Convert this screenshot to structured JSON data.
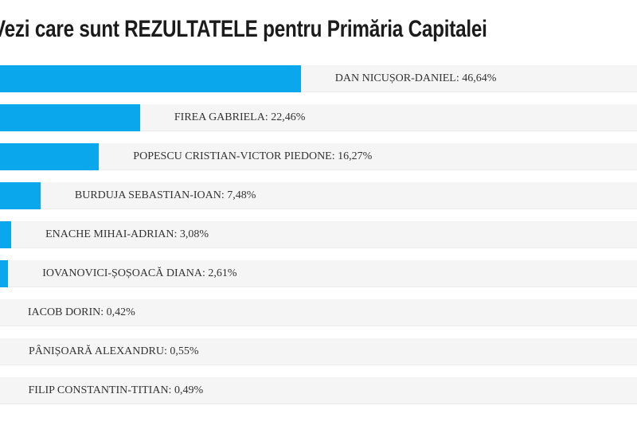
{
  "header": {
    "title": "Vezi care sunt REZULTATELE pentru Primăria Capitalei"
  },
  "colors": {
    "bar": "#0aa7ec",
    "row_background": "#f5f5f5",
    "title_text": "#1b1b1b",
    "label_text": "#333333"
  },
  "chart_data": {
    "type": "bar",
    "orientation": "horizontal",
    "title": "Vezi care sunt REZULTATELE pentru Primăria Capitalei",
    "categories": [
      "DAN NICUȘOR-DANIEL",
      "FIREA GABRIELA",
      "POPESCU CRISTIAN-VICTOR PIEDONE",
      "BURDUJA SEBASTIAN-IOAN",
      "ENACHE MIHAI-ADRIAN",
      "IOVANOVICI-ȘOȘOACĂ DIANA",
      "IACOB DORIN",
      "PÂNIȘOARĂ ALEXANDRU",
      "FILIP CONSTANTIN-TITIAN"
    ],
    "values": [
      46.64,
      22.46,
      16.27,
      7.48,
      3.08,
      2.61,
      0.42,
      0.55,
      0.49
    ],
    "unit": "%",
    "value_labels": [
      "46,64%",
      "22,46%",
      "16,27%",
      "7,48%",
      "3,08%",
      "2,61%",
      "0,42%",
      "0,55%",
      "0,49%"
    ],
    "row_labels": [
      "DAN NICUȘOR-DANIEL: 46,64%",
      "FIREA GABRIELA: 22,46%",
      "POPESCU CRISTIAN-VICTOR PIEDONE: 16,27%",
      "BURDUJA SEBASTIAN-IOAN: 7,48%",
      "ENACHE MIHAI-ADRIAN: 3,08%",
      "IOVANOVICI-ȘOȘOACĂ DIANA: 2,61%",
      "IACOB DORIN: 0,42%",
      "PÂNIȘOARĂ ALEXANDRU: 0,55%",
      "FILIP CONSTANTIN-TITIAN: 0,49%"
    ],
    "grid": false,
    "legend": false
  }
}
